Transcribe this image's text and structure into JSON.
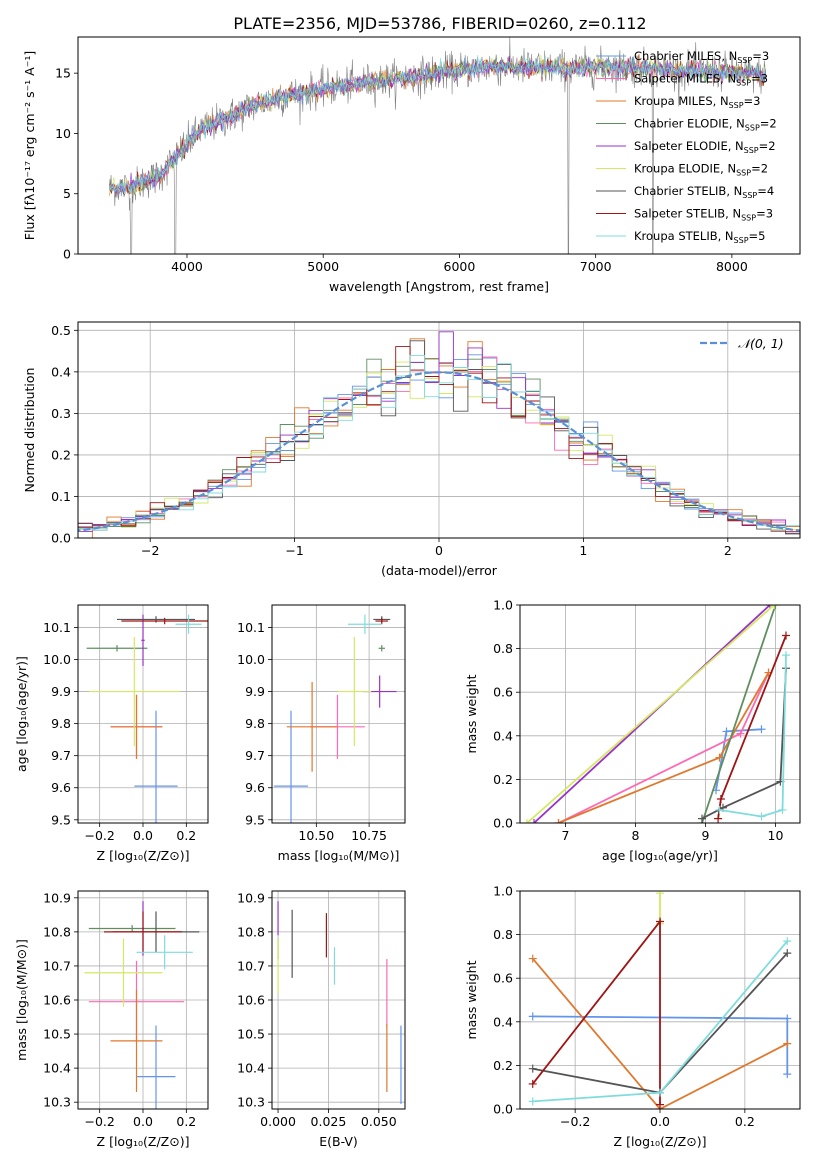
{
  "figure": {
    "title": "PLATE=2356, MJD=53786, FIBERID=0260, z=0.112"
  },
  "colors": {
    "C1": "#6495ed",
    "C2": "#ff69b4",
    "C3": "#e0782e",
    "C4": "#5f8f5f",
    "C5": "#9b30c8",
    "C6": "#d4e864",
    "C7": "#555555",
    "C8": "#a01414",
    "C9": "#80dcdc",
    "spec_gray": "#808080",
    "normal_line": "#5b8fd6"
  },
  "chart_data": [
    {
      "id": "spectrum",
      "type": "line",
      "xlabel": "wavelength [Angstrom, rest frame]",
      "ylabel": "Flux [fλ10⁻¹⁷ erg cm⁻² s⁻¹ A⁻¹]",
      "xlim": [
        3200,
        8500
      ],
      "ylim": [
        0,
        18
      ],
      "xticks": [
        4000,
        5000,
        6000,
        7000,
        8000
      ],
      "yticks": [
        0,
        5,
        10,
        15
      ],
      "grid": false,
      "legend_position": "right",
      "continuum": [
        [
          3430,
          5.5
        ],
        [
          3600,
          5.6
        ],
        [
          3800,
          6.5
        ],
        [
          3950,
          8.5
        ],
        [
          4100,
          10.3
        ],
        [
          4300,
          11.3
        ],
        [
          4500,
          12.4
        ],
        [
          4700,
          13.0
        ],
        [
          5000,
          13.7
        ],
        [
          5300,
          14.2
        ],
        [
          5600,
          14.6
        ],
        [
          5900,
          15.1
        ],
        [
          6200,
          15.5
        ],
        [
          6500,
          15.5
        ],
        [
          6800,
          15.4
        ],
        [
          7100,
          15.5
        ],
        [
          7400,
          15.4
        ],
        [
          7700,
          15.2
        ],
        [
          8000,
          15.1
        ],
        [
          8250,
          14.8
        ]
      ],
      "legend": [
        {
          "label": "Chabrier MILES, N",
          "sub": "SSP",
          "suffix": "=3",
          "color": "C1"
        },
        {
          "label": "Salpeter MILES, N",
          "sub": "SSP",
          "suffix": "=3",
          "color": "C2"
        },
        {
          "label": "Kroupa MILES, N",
          "sub": "SSP",
          "suffix": "=3",
          "color": "C3"
        },
        {
          "label": "Chabrier ELODIE, N",
          "sub": "SSP",
          "suffix": "=2",
          "color": "C4"
        },
        {
          "label": "Salpeter ELODIE, N",
          "sub": "SSP",
          "suffix": "=2",
          "color": "C5"
        },
        {
          "label": "Kroupa ELODIE, N",
          "sub": "SSP",
          "suffix": "=2",
          "color": "C6"
        },
        {
          "label": "Chabrier STELIB, N",
          "sub": "SSP",
          "suffix": "=4",
          "color": "C7"
        },
        {
          "label": "Salpeter STELIB, N",
          "sub": "SSP",
          "suffix": "=3",
          "color": "C8"
        },
        {
          "label": "Kroupa STELIB, N",
          "sub": "SSP",
          "suffix": "=5",
          "color": "C9"
        }
      ]
    },
    {
      "id": "residuals",
      "type": "line",
      "xlabel": "(data-model)/error",
      "ylabel": "Normed distribution",
      "xlim": [
        -2.5,
        2.5
      ],
      "ylim": [
        0,
        0.52
      ],
      "xticks": [
        -2,
        -1,
        0,
        1,
        2
      ],
      "yticks": [
        0.0,
        0.1,
        0.2,
        0.3,
        0.4,
        0.5
      ],
      "grid": true,
      "legend_position": "top-right",
      "legend": [
        {
          "label": "𝒩(0, 1)",
          "color": "normal_line"
        }
      ],
      "bin_width": 0.1,
      "series_colors": [
        "C1",
        "C2",
        "C3",
        "C4",
        "C5",
        "C6",
        "C7",
        "C8",
        "C9"
      ]
    },
    {
      "id": "age_vs_Z",
      "type": "scatter",
      "xlabel": "Z [log₁₀(Z/Z⊙)]",
      "ylabel": "age  [log₁₀(age/yr)]",
      "xlim": [
        -0.3,
        0.3
      ],
      "ylim": [
        9.49,
        10.17
      ],
      "xticks": [
        -0.2,
        0.0,
        0.2
      ],
      "yticks": [
        9.5,
        9.6,
        9.7,
        9.8,
        9.9,
        10.0,
        10.1
      ],
      "grid": true,
      "points": [
        {
          "c": "C1",
          "x": 0.06,
          "xerr": 0.1,
          "y": 9.605,
          "yerr": 0.235
        },
        {
          "c": "C2",
          "x": -0.03,
          "xerr": 0.12,
          "y": 9.79,
          "yerr": 0.1
        },
        {
          "c": "C3",
          "x": -0.03,
          "xerr": 0.12,
          "y": 9.79,
          "yerr": 0.1
        },
        {
          "c": "C4",
          "x": -0.12,
          "xerr": 0.14,
          "y": 10.035,
          "yerr": 0.01
        },
        {
          "c": "C5",
          "x": 0.0,
          "xerr": 0.008,
          "y": 10.06,
          "yerr": 0.08
        },
        {
          "c": "C6",
          "x": -0.04,
          "xerr": 0.21,
          "y": 9.9,
          "yerr": 0.17
        },
        {
          "c": "C7",
          "x": 0.06,
          "xerr": 0.18,
          "y": 10.125,
          "yerr": 0.01
        },
        {
          "c": "C8",
          "x": 0.1,
          "xerr": 0.2,
          "y": 10.12,
          "yerr": 0.01
        },
        {
          "c": "C9",
          "x": 0.21,
          "xerr": 0.06,
          "y": 10.11,
          "yerr": 0.03
        }
      ]
    },
    {
      "id": "age_vs_mass",
      "type": "scatter",
      "xlabel": "mass [log₁₀(M/M⊙)]",
      "ylabel": "",
      "xlim": [
        10.29,
        10.92
      ],
      "ylim": [
        9.49,
        10.17
      ],
      "xticks": [
        10.5,
        10.75
      ],
      "yticks": [
        9.5,
        9.6,
        9.7,
        9.8,
        9.9,
        10.0,
        10.1
      ],
      "grid": true,
      "points": [
        {
          "c": "C1",
          "x": 10.38,
          "xerr": 0.08,
          "y": 9.605,
          "yerr": 0.235
        },
        {
          "c": "C2",
          "x": 10.6,
          "xerr": 0.13,
          "y": 9.79,
          "yerr": 0.1
        },
        {
          "c": "C3",
          "x": 10.48,
          "xerr": 0.12,
          "y": 9.79,
          "yerr": 0.14
        },
        {
          "c": "C4",
          "x": 10.81,
          "xerr": 0.015,
          "y": 10.035,
          "yerr": 0.01
        },
        {
          "c": "C5",
          "x": 10.8,
          "xerr": 0.08,
          "y": 9.9,
          "yerr": 0.05
        },
        {
          "c": "C6",
          "x": 10.68,
          "xerr": 0.08,
          "y": 9.9,
          "yerr": 0.17
        },
        {
          "c": "C7",
          "x": 10.81,
          "xerr": 0.04,
          "y": 10.125,
          "yerr": 0.01
        },
        {
          "c": "C8",
          "x": 10.81,
          "xerr": 0.03,
          "y": 10.12,
          "yerr": 0.01
        },
        {
          "c": "C9",
          "x": 10.73,
          "xerr": 0.08,
          "y": 10.11,
          "yerr": 0.03
        }
      ]
    },
    {
      "id": "mass_vs_Z",
      "type": "scatter",
      "xlabel": "Z [log₁₀(Z/Z⊙)]",
      "ylabel": "mass [log₁₀(M/M⊙)]",
      "xlim": [
        -0.3,
        0.3
      ],
      "ylim": [
        10.28,
        10.92
      ],
      "xticks": [
        -0.2,
        0.0,
        0.2
      ],
      "yticks": [
        10.3,
        10.4,
        10.5,
        10.6,
        10.7,
        10.8,
        10.9
      ],
      "grid": true,
      "points": [
        {
          "c": "C1",
          "x": 0.06,
          "xerr": 0.09,
          "y": 10.375,
          "yerr": 0.15
        },
        {
          "c": "C2",
          "x": -0.03,
          "xerr": 0.22,
          "y": 10.595,
          "yerr": 0.12
        },
        {
          "c": "C3",
          "x": -0.03,
          "xerr": 0.12,
          "y": 10.48,
          "yerr": 0.15
        },
        {
          "c": "C4",
          "x": -0.05,
          "xerr": 0.2,
          "y": 10.81,
          "yerr": 0.01
        },
        {
          "c": "C5",
          "x": 0.0,
          "xerr": 0.005,
          "y": 10.81,
          "yerr": 0.08
        },
        {
          "c": "C6",
          "x": -0.09,
          "xerr": 0.18,
          "y": 10.68,
          "yerr": 0.1
        },
        {
          "c": "C7",
          "x": 0.06,
          "xerr": 0.2,
          "y": 10.8,
          "yerr": 0.06
        },
        {
          "c": "C8",
          "x": 0.0,
          "xerr": 0.18,
          "y": 10.8,
          "yerr": 0.06
        },
        {
          "c": "C9",
          "x": 0.1,
          "xerr": 0.13,
          "y": 10.74,
          "yerr": 0.05
        }
      ]
    },
    {
      "id": "mass_vs_ebv",
      "type": "scatter",
      "xlabel": "E(B-V)",
      "ylabel": "",
      "xlim": [
        -0.003,
        0.063
      ],
      "ylim": [
        10.28,
        10.92
      ],
      "xticks": [
        0.0,
        0.025,
        0.05
      ],
      "yticks": [
        10.3,
        10.4,
        10.5,
        10.6,
        10.7,
        10.8,
        10.9
      ],
      "grid": true,
      "points": [
        {
          "c": "C1",
          "x": 0.061,
          "xerr": 0,
          "y": 10.41,
          "yerr": 0.115
        },
        {
          "c": "C2",
          "x": 0.054,
          "xerr": 0,
          "y": 10.62,
          "yerr": 0.1
        },
        {
          "c": "C3",
          "x": 0.054,
          "xerr": 0,
          "y": 10.43,
          "yerr": 0.1
        },
        {
          "c": "C4",
          "x": 0.0,
          "xerr": 0,
          "y": 10.75,
          "yerr": 0.03
        },
        {
          "c": "C5",
          "x": 0.0,
          "xerr": 0,
          "y": 10.84,
          "yerr": 0.05
        },
        {
          "c": "C6",
          "x": 0.0,
          "xerr": 0,
          "y": 10.7,
          "yerr": 0.08
        },
        {
          "c": "C7",
          "x": 0.007,
          "xerr": 0,
          "y": 10.765,
          "yerr": 0.1
        },
        {
          "c": "C8",
          "x": 0.024,
          "xerr": 0,
          "y": 10.79,
          "yerr": 0.065
        },
        {
          "c": "C9",
          "x": 0.028,
          "xerr": 0,
          "y": 10.7,
          "yerr": 0.055
        }
      ]
    },
    {
      "id": "weight_vs_age",
      "type": "line",
      "xlabel": "age  [log₁₀(age/yr)]",
      "ylabel": "mass weight",
      "xlim": [
        6.35,
        10.35
      ],
      "ylim": [
        0,
        1
      ],
      "xticks": [
        7,
        8,
        9,
        10
      ],
      "yticks": [
        0.0,
        0.2,
        0.4,
        0.6,
        0.8,
        1.0
      ],
      "grid": true,
      "series": [
        {
          "c": "C1",
          "points": [
            [
              9.15,
              0.15
            ],
            [
              9.3,
              0.42
            ],
            [
              9.8,
              0.43
            ]
          ]
        },
        {
          "c": "C2",
          "points": [
            [
              6.9,
              0.0
            ],
            [
              9.5,
              0.41
            ],
            [
              9.9,
              0.69
            ]
          ]
        },
        {
          "c": "C3",
          "points": [
            [
              6.9,
              0.0
            ],
            [
              9.2,
              0.3
            ],
            [
              9.9,
              0.69
            ]
          ]
        },
        {
          "c": "C4",
          "points": [
            [
              8.95,
              0.0
            ],
            [
              10.0,
              1.0
            ]
          ]
        },
        {
          "c": "C5",
          "points": [
            [
              6.55,
              0.0
            ],
            [
              9.92,
              1.0
            ]
          ]
        },
        {
          "c": "C6",
          "points": [
            [
              6.45,
              0.0
            ],
            [
              9.98,
              1.0
            ]
          ]
        },
        {
          "c": "C7",
          "points": [
            [
              8.95,
              0.02
            ],
            [
              9.25,
              0.07
            ],
            [
              10.07,
              0.19
            ],
            [
              10.15,
              0.71
            ]
          ]
        },
        {
          "c": "C8",
          "points": [
            [
              9.18,
              0.02
            ],
            [
              9.22,
              0.11
            ],
            [
              10.15,
              0.86
            ]
          ]
        },
        {
          "c": "C9",
          "points": [
            [
              9.2,
              0.06
            ],
            [
              9.8,
              0.03
            ],
            [
              10.1,
              0.06
            ],
            [
              10.15,
              0.77
            ]
          ]
        }
      ]
    },
    {
      "id": "weight_vs_Z",
      "type": "line",
      "xlabel": "Z [log₁₀(Z/Z⊙)]",
      "ylabel": "mass weight",
      "xlim": [
        -0.33,
        0.33
      ],
      "ylim": [
        0,
        1
      ],
      "xticks": [
        -0.2,
        0.0,
        0.2
      ],
      "yticks": [
        0.0,
        0.2,
        0.4,
        0.6,
        0.8,
        1.0
      ],
      "grid": true,
      "series": [
        {
          "c": "C1",
          "points": [
            [
              -0.3,
              0.425
            ],
            [
              0.3,
              0.415
            ],
            [
              0.3,
              0.16
            ]
          ]
        },
        {
          "c": "C3",
          "points": [
            [
              -0.3,
              0.69
            ],
            [
              0.0,
              0.0
            ],
            [
              0.3,
              0.3
            ]
          ]
        },
        {
          "c": "C6",
          "points": [
            [
              0.0,
              0.99
            ],
            [
              0.0,
              0.85
            ]
          ]
        },
        {
          "c": "C7",
          "points": [
            [
              -0.3,
              0.185
            ],
            [
              0.0,
              0.075
            ],
            [
              0.3,
              0.715
            ]
          ]
        },
        {
          "c": "C8",
          "points": [
            [
              -0.3,
              0.115
            ],
            [
              0.0,
              0.86
            ],
            [
              0.0,
              0.02
            ]
          ]
        },
        {
          "c": "C9",
          "points": [
            [
              -0.3,
              0.035
            ],
            [
              0.0,
              0.075
            ],
            [
              0.3,
              0.77
            ]
          ]
        }
      ]
    }
  ]
}
